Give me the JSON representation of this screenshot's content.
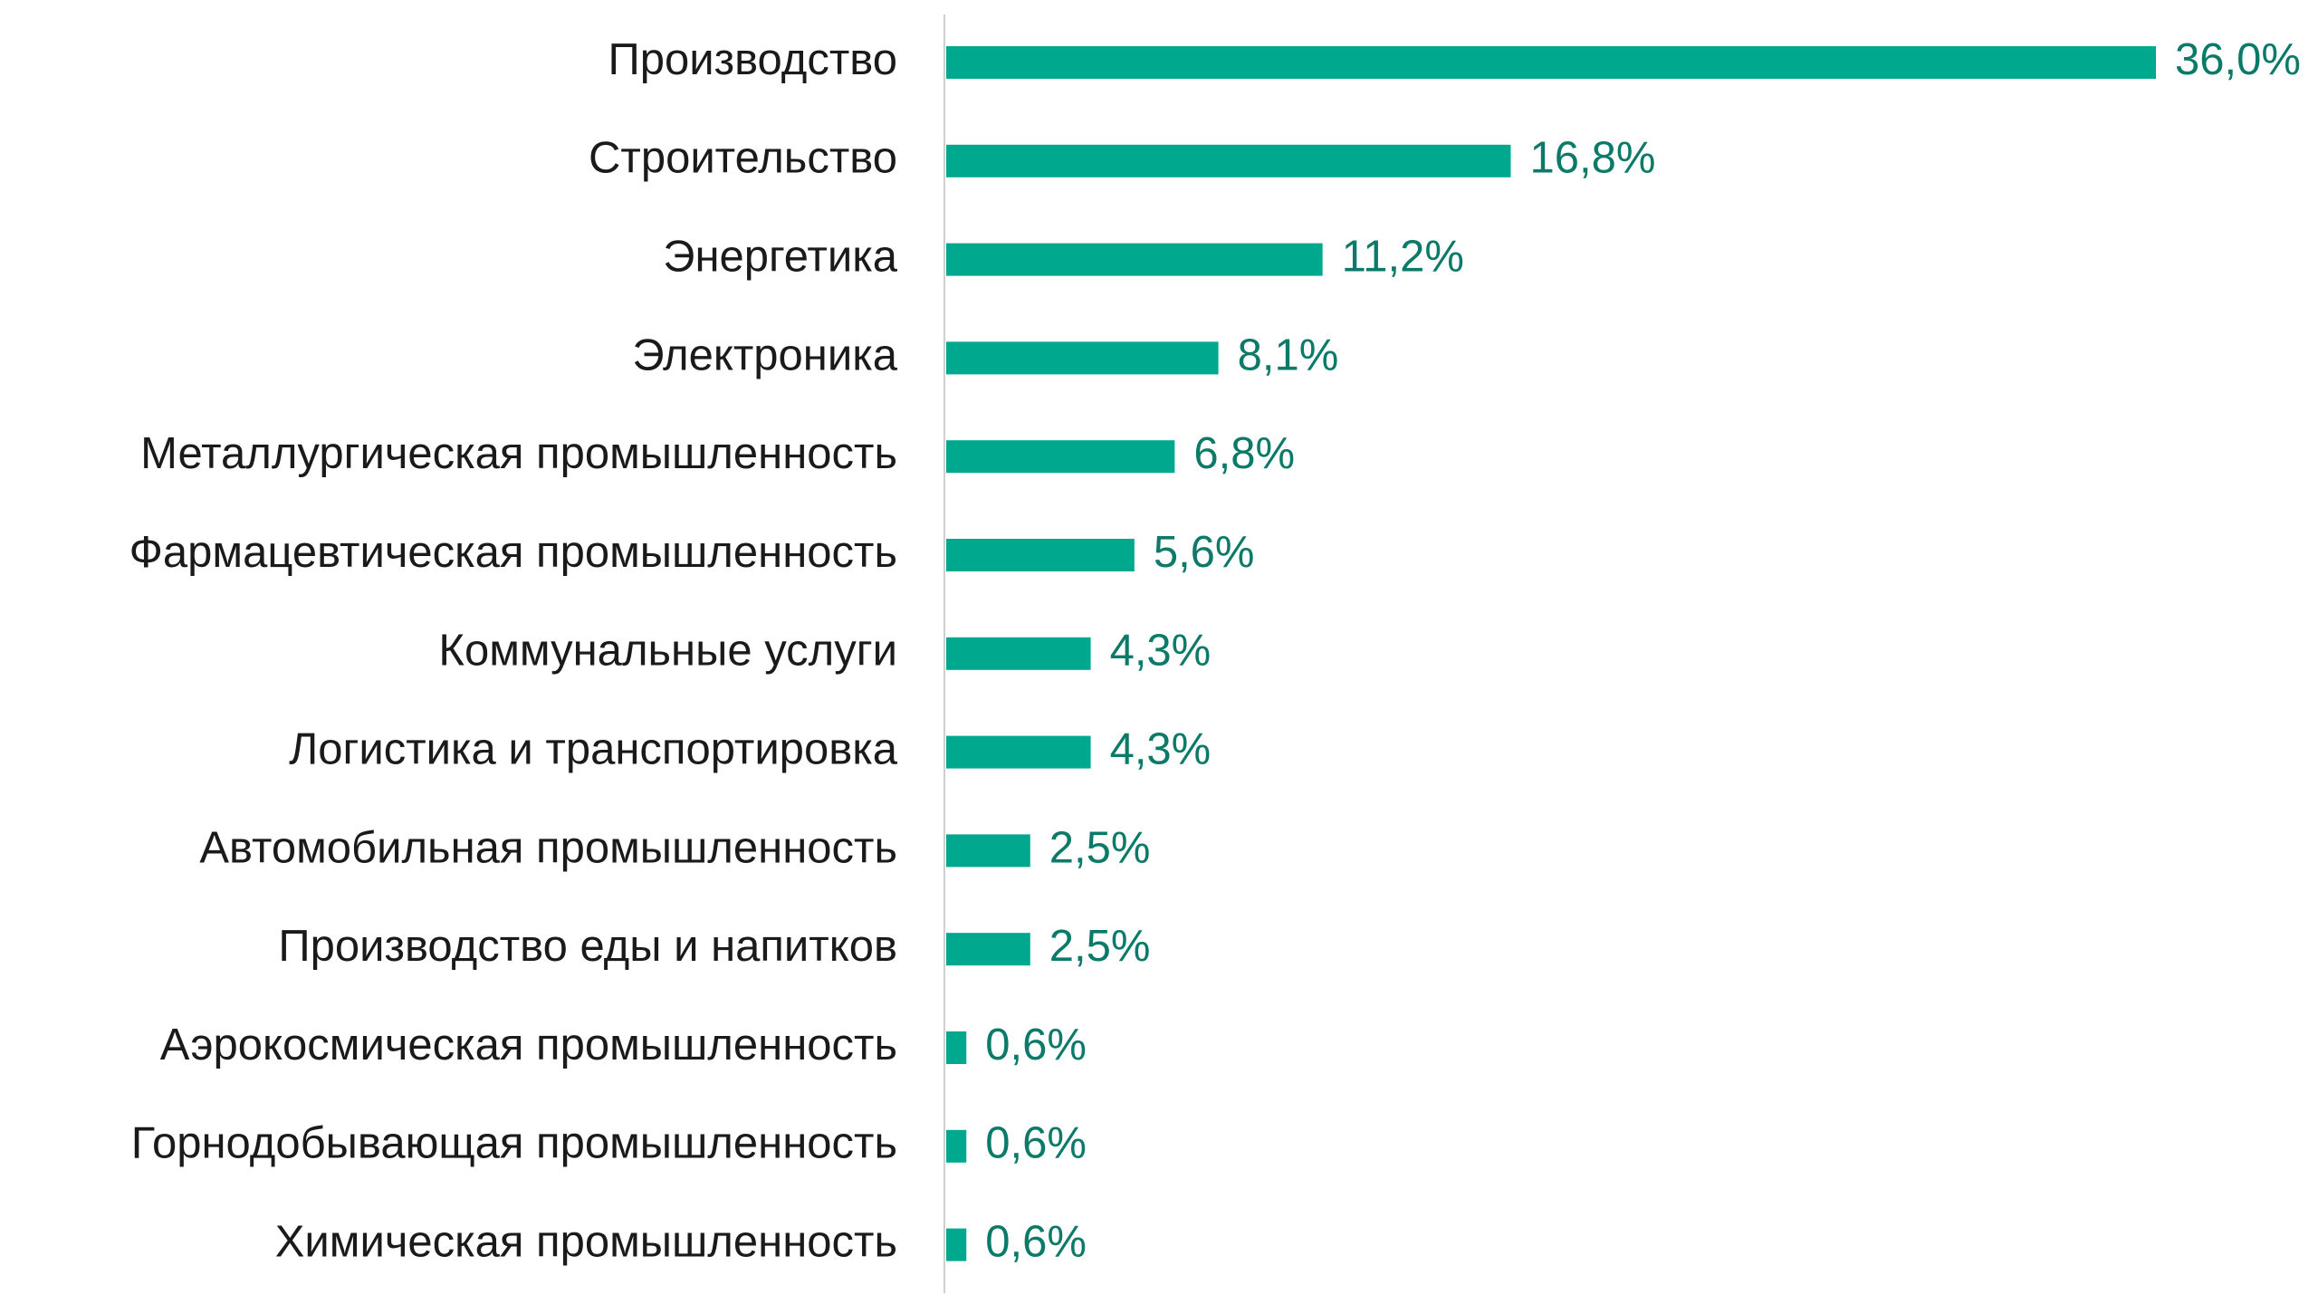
{
  "chart_data": {
    "type": "bar",
    "orientation": "horizontal",
    "categories": [
      "Производство",
      "Строительство",
      "Энергетика",
      "Электроника",
      "Металлургическая промышленность",
      "Фармацевтическая промышленность",
      "Коммунальные услуги",
      "Логистика и транспортировка",
      "Автомобильная промышленность",
      "Производство еды и напитков",
      "Аэрокосмическая промышленность",
      "Горнодобывающая промышленность",
      "Химическая промышленность"
    ],
    "values": [
      36.0,
      16.8,
      11.2,
      8.1,
      6.8,
      5.6,
      4.3,
      4.3,
      2.5,
      2.5,
      0.6,
      0.6,
      0.6
    ],
    "value_labels": [
      "36,0%",
      "16,8%",
      "11,2%",
      "8,1%",
      "6,8%",
      "5,6%",
      "4,3%",
      "4,3%",
      "2,5%",
      "2,5%",
      "0,6%",
      "0,6%",
      "0,6%"
    ],
    "color": "#00a88e",
    "label_color": "#0b7a68"
  }
}
